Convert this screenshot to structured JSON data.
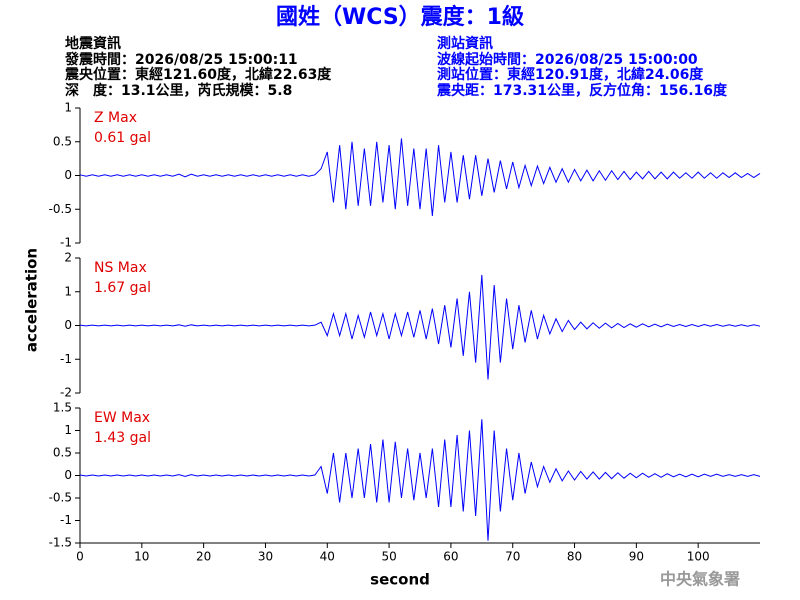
{
  "header": {
    "title": "國姓（WCS）震度：1級",
    "left": [
      "地震資訊",
      "發震時間：2026/08/25 15:00:11",
      "震央位置：東經121.60度，北緯22.63度",
      "深　度：13.1公里，芮氏規模：5.8"
    ],
    "right": [
      "測站資訊",
      "波線起始時間：2026/08/25 15:00:00",
      "測站位置：東經120.91度，北緯24.06度",
      "震央距：173.31公里，反方位角：156.16度"
    ],
    "footer": "中央氣象署"
  },
  "chart_data": {
    "type": "line",
    "xlabel": "second",
    "ylabel": "acceleration",
    "xlim": [
      0,
      110
    ],
    "xticks": [
      0,
      10,
      20,
      30,
      40,
      50,
      60,
      70,
      80,
      90,
      100
    ],
    "x": [
      0,
      1,
      2,
      3,
      4,
      5,
      6,
      7,
      8,
      9,
      10,
      11,
      12,
      13,
      14,
      15,
      16,
      17,
      18,
      19,
      20,
      21,
      22,
      23,
      24,
      25,
      26,
      27,
      28,
      29,
      30,
      31,
      32,
      33,
      34,
      35,
      36,
      37,
      38,
      39,
      40,
      41,
      42,
      43,
      44,
      45,
      46,
      47,
      48,
      49,
      50,
      51,
      52,
      53,
      54,
      55,
      56,
      57,
      58,
      59,
      60,
      61,
      62,
      63,
      64,
      65,
      66,
      67,
      68,
      69,
      70,
      71,
      72,
      73,
      74,
      75,
      76,
      77,
      78,
      79,
      80,
      81,
      82,
      83,
      84,
      85,
      86,
      87,
      88,
      89,
      90,
      91,
      92,
      93,
      94,
      95,
      96,
      97,
      98,
      99,
      100,
      101,
      102,
      103,
      104,
      105,
      106,
      107,
      108,
      109,
      110
    ],
    "series": [
      {
        "name": "Z Max",
        "annotation": "0.61 gal",
        "color": "#0000ff",
        "ylim": [
          -1,
          1
        ],
        "yticks": [
          -1,
          -0.5,
          0,
          0.5,
          1
        ],
        "values": [
          0.01,
          -0.01,
          0.01,
          -0.01,
          0.01,
          -0.01,
          0.01,
          -0.01,
          0.01,
          -0.01,
          0.01,
          -0.01,
          0.01,
          -0.01,
          0.01,
          -0.01,
          0.02,
          -0.02,
          0.02,
          -0.01,
          0.01,
          -0.01,
          0.01,
          -0.01,
          0.01,
          -0.01,
          0.01,
          -0.01,
          0.01,
          -0.01,
          0.01,
          -0.01,
          0.01,
          -0.01,
          0.01,
          -0.01,
          0.01,
          -0.01,
          0.01,
          0.1,
          0.35,
          -0.4,
          0.45,
          -0.5,
          0.5,
          -0.45,
          0.4,
          -0.45,
          0.5,
          -0.4,
          0.45,
          -0.5,
          0.55,
          -0.45,
          0.4,
          -0.5,
          0.4,
          -0.6,
          0.45,
          -0.4,
          0.35,
          -0.4,
          0.3,
          -0.35,
          0.3,
          -0.3,
          0.25,
          -0.25,
          0.22,
          -0.2,
          0.2,
          -0.18,
          0.15,
          -0.15,
          0.14,
          -0.12,
          0.12,
          -0.1,
          0.1,
          -0.1,
          0.09,
          -0.08,
          0.08,
          -0.08,
          0.07,
          -0.07,
          0.07,
          -0.06,
          0.06,
          -0.06,
          0.05,
          -0.05,
          0.06,
          -0.05,
          0.05,
          -0.05,
          0.05,
          -0.04,
          0.04,
          -0.04,
          0.05,
          -0.04,
          0.04,
          -0.04,
          0.04,
          -0.03,
          0.04,
          -0.03,
          0.03,
          -0.03,
          0.03
        ]
      },
      {
        "name": "NS Max",
        "annotation": "1.67 gal",
        "color": "#0000ff",
        "ylim": [
          -2,
          2
        ],
        "yticks": [
          -2,
          -1,
          0,
          1,
          2
        ],
        "values": [
          0.01,
          -0.01,
          0.01,
          -0.01,
          0.01,
          -0.01,
          0.01,
          -0.01,
          0.01,
          -0.01,
          0.01,
          -0.01,
          0.01,
          -0.01,
          0.01,
          -0.01,
          0.02,
          -0.02,
          0.02,
          -0.01,
          0.01,
          -0.01,
          0.01,
          -0.01,
          0.01,
          -0.01,
          0.01,
          -0.01,
          0.01,
          -0.01,
          0.01,
          -0.01,
          0.01,
          -0.01,
          0.01,
          -0.01,
          0.01,
          -0.01,
          0.01,
          0.1,
          -0.3,
          0.35,
          -0.3,
          0.35,
          -0.4,
          0.3,
          -0.35,
          0.4,
          -0.3,
          0.35,
          -0.4,
          0.35,
          -0.3,
          0.4,
          -0.35,
          0.45,
          -0.4,
          0.5,
          -0.55,
          0.6,
          -0.65,
          0.8,
          -0.9,
          1.0,
          -1.1,
          1.5,
          -1.6,
          1.2,
          -1.1,
          0.8,
          -0.7,
          0.6,
          -0.5,
          0.45,
          -0.4,
          0.3,
          -0.25,
          0.2,
          -0.18,
          0.15,
          -0.12,
          0.1,
          -0.1,
          0.08,
          -0.08,
          0.07,
          -0.07,
          0.06,
          -0.06,
          0.05,
          -0.05,
          0.05,
          -0.04,
          0.04,
          -0.04,
          0.04,
          -0.03,
          0.03,
          -0.03,
          0.03,
          -0.03,
          0.03,
          -0.02,
          0.03,
          -0.02,
          0.02,
          -0.02,
          0.02,
          -0.02,
          0.02,
          -0.02
        ]
      },
      {
        "name": "EW Max",
        "annotation": "1.43 gal",
        "color": "#0000ff",
        "ylim": [
          -1.5,
          1.5
        ],
        "yticks": [
          -1.5,
          -1,
          -0.5,
          0,
          0.5,
          1,
          1.5
        ],
        "values": [
          0.01,
          -0.01,
          0.01,
          -0.01,
          0.01,
          -0.01,
          0.01,
          -0.01,
          0.01,
          -0.01,
          0.01,
          -0.01,
          0.01,
          -0.01,
          0.01,
          -0.01,
          0.02,
          -0.02,
          0.02,
          -0.01,
          0.01,
          -0.01,
          0.01,
          -0.01,
          0.01,
          -0.01,
          0.01,
          -0.01,
          0.01,
          -0.01,
          0.01,
          -0.01,
          0.01,
          -0.01,
          0.01,
          -0.01,
          0.01,
          -0.01,
          0.01,
          0.2,
          -0.4,
          0.5,
          -0.6,
          0.5,
          -0.5,
          0.6,
          -0.5,
          0.7,
          -0.6,
          0.8,
          -0.6,
          0.75,
          -0.5,
          0.6,
          -0.55,
          0.5,
          -0.5,
          0.6,
          -0.7,
          0.8,
          -0.7,
          0.9,
          -0.8,
          1.0,
          -0.9,
          1.25,
          -1.45,
          1.0,
          -0.8,
          0.6,
          -0.55,
          0.5,
          -0.4,
          0.3,
          -0.25,
          0.2,
          -0.15,
          0.15,
          -0.12,
          0.1,
          -0.1,
          0.09,
          -0.08,
          0.08,
          -0.08,
          0.07,
          -0.07,
          0.06,
          -0.06,
          0.05,
          -0.05,
          0.05,
          -0.04,
          0.04,
          -0.04,
          0.04,
          -0.03,
          0.03,
          -0.03,
          0.03,
          -0.03,
          0.03,
          -0.02,
          0.03,
          -0.02,
          0.02,
          -0.02,
          0.02,
          -0.02,
          0.02,
          -0.02
        ]
      }
    ]
  }
}
